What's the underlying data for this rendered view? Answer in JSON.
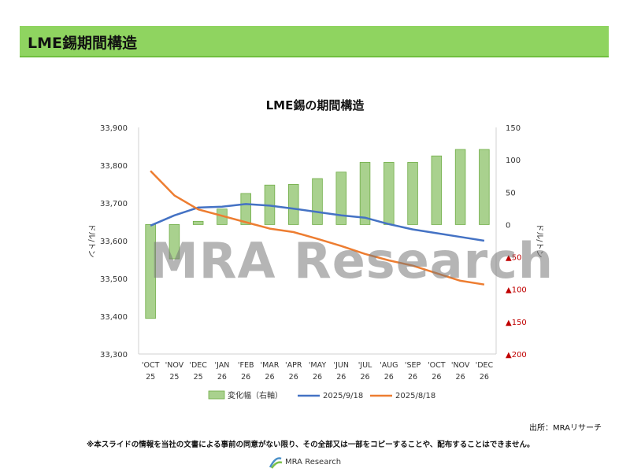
{
  "header": {
    "title": "LME錫期間構造"
  },
  "chart_data": {
    "type": "bar+line",
    "title": "LME錫の期間構造",
    "categories": [
      [
        "'OCT",
        "25"
      ],
      [
        "'NOV",
        "25"
      ],
      [
        "'DEC",
        "25"
      ],
      [
        "'JAN",
        "26"
      ],
      [
        "'FEB",
        "26"
      ],
      [
        "'MAR",
        "26"
      ],
      [
        "'APR",
        "26"
      ],
      [
        "'MAY",
        "26"
      ],
      [
        "'JUN",
        "26"
      ],
      [
        "'JUL",
        "26"
      ],
      [
        "'AUG",
        "26"
      ],
      [
        "'SEP",
        "26"
      ],
      [
        "'OCT",
        "26"
      ],
      [
        "'NOV",
        "26"
      ],
      [
        "'DEC",
        "26"
      ]
    ],
    "left_axis": {
      "label": "ドル/トン",
      "min": 33300,
      "max": 33900,
      "ticks": [
        "33,300",
        "33,400",
        "33,500",
        "33,600",
        "33,700",
        "33,800",
        "33,900"
      ]
    },
    "right_axis": {
      "label": "ドル/トン",
      "min": -200,
      "max": 150,
      "ticks": [
        {
          "value": 150,
          "label": "150",
          "negative": false
        },
        {
          "value": 100,
          "label": "100",
          "negative": false
        },
        {
          "value": 50,
          "label": "50",
          "negative": false
        },
        {
          "value": 0,
          "label": "0",
          "negative": false
        },
        {
          "value": -50,
          "label": "50",
          "negative": true
        },
        {
          "value": -100,
          "label": "100",
          "negative": true
        },
        {
          "value": -150,
          "label": "150",
          "negative": true
        },
        {
          "value": -200,
          "label": "200",
          "negative": true
        }
      ]
    },
    "bars": {
      "name": "変化幅（右軸）",
      "axis": "right",
      "color": "#a9d18e",
      "edge": "#70ad47",
      "values": [
        -145,
        -53,
        5,
        24,
        48,
        61,
        62,
        71,
        81,
        96,
        96,
        96,
        106,
        116,
        116
      ]
    },
    "series": [
      {
        "name": "2025/9/18",
        "axis": "left",
        "color": "#4472c4",
        "values": [
          33640,
          33667,
          33688,
          33690,
          33697,
          33693,
          33685,
          33676,
          33667,
          33661,
          33644,
          33630,
          33620,
          33610,
          33600
        ]
      },
      {
        "name": "2025/8/18",
        "axis": "left",
        "color": "#ed7d31",
        "values": [
          33785,
          33720,
          33683,
          33666,
          33649,
          33632,
          33623,
          33605,
          33586,
          33565,
          33548,
          33534,
          33514,
          33494,
          33484
        ]
      }
    ],
    "legend_position": "bottom"
  },
  "source": "出所：MRAリサーチ",
  "notice": "※本スライドの情報を当社の文書による事前の同意がない限り、その全部又は一部をコピーすることや、配布することはできません。",
  "watermark": "MRA Research",
  "logo_text": "MRA Research",
  "neg_symbol": "▲"
}
